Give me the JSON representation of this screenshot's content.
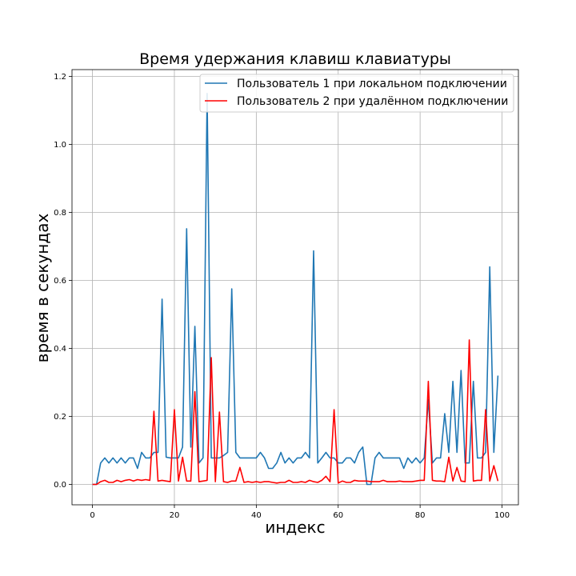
{
  "chart_data": {
    "type": "line",
    "title": "Время удержания клавиш клавиатуры",
    "xlabel": "индекс",
    "ylabel": "время в секундах",
    "xlim": [
      -5,
      104
    ],
    "ylim": [
      -0.06,
      1.22
    ],
    "xticks": [
      0,
      20,
      40,
      60,
      80,
      100
    ],
    "yticks": [
      0.0,
      0.2,
      0.4,
      0.6,
      0.8,
      1.0,
      1.2
    ],
    "xtick_labels": [
      "0",
      "20",
      "40",
      "60",
      "80",
      "100"
    ],
    "ytick_labels": [
      "0.0",
      "0.2",
      "0.4",
      "0.6",
      "0.8",
      "1.0",
      "1.2"
    ],
    "grid": true,
    "legend_position": "top-right",
    "series": [
      {
        "name": "Пользователь 1 при локальном подключении",
        "color": "#1f77b4",
        "x": [
          0,
          1,
          2,
          3,
          4,
          5,
          6,
          7,
          8,
          9,
          10,
          11,
          12,
          13,
          14,
          15,
          16,
          17,
          18,
          19,
          20,
          21,
          22,
          23,
          24,
          25,
          26,
          27,
          28,
          29,
          30,
          31,
          32,
          33,
          34,
          35,
          36,
          37,
          38,
          39,
          40,
          41,
          42,
          43,
          44,
          45,
          46,
          47,
          48,
          49,
          50,
          51,
          52,
          53,
          54,
          55,
          56,
          57,
          58,
          59,
          60,
          61,
          62,
          63,
          64,
          65,
          66,
          67,
          68,
          69,
          70,
          71,
          72,
          73,
          74,
          75,
          76,
          77,
          78,
          79,
          80,
          81,
          82,
          83,
          84,
          85,
          86,
          87,
          88,
          89,
          90,
          91,
          92,
          93,
          94,
          95,
          96,
          97,
          98,
          99
        ],
        "values": [
          0.0,
          0.0,
          0.063,
          0.078,
          0.063,
          0.078,
          0.063,
          0.078,
          0.063,
          0.078,
          0.078,
          0.047,
          0.094,
          0.078,
          0.078,
          0.094,
          0.094,
          0.545,
          0.08,
          0.078,
          0.078,
          0.078,
          0.11,
          0.752,
          0.11,
          0.465,
          0.063,
          0.078,
          1.15,
          0.078,
          0.078,
          0.078,
          0.085,
          0.094,
          0.575,
          0.094,
          0.078,
          0.078,
          0.078,
          0.078,
          0.078,
          0.094,
          0.078,
          0.047,
          0.047,
          0.063,
          0.094,
          0.063,
          0.078,
          0.063,
          0.078,
          0.078,
          0.094,
          0.078,
          0.687,
          0.063,
          0.078,
          0.094,
          0.078,
          0.078,
          0.063,
          0.063,
          0.078,
          0.078,
          0.063,
          0.094,
          0.11,
          0.0,
          0.0,
          0.078,
          0.094,
          0.078,
          0.078,
          0.078,
          0.078,
          0.078,
          0.047,
          0.078,
          0.063,
          0.078,
          0.063,
          0.078,
          0.25,
          0.063,
          0.078,
          0.078,
          0.208,
          0.094,
          0.303,
          0.094,
          0.335,
          0.063,
          0.063,
          0.303,
          0.078,
          0.078,
          0.094,
          0.64,
          0.094,
          0.32
        ]
      },
      {
        "name": "Пользователь 2 при удалённом подключении",
        "color": "#ff0000",
        "x": [
          0,
          1,
          2,
          3,
          4,
          5,
          6,
          7,
          8,
          9,
          10,
          11,
          12,
          13,
          14,
          15,
          16,
          17,
          18,
          19,
          20,
          21,
          22,
          23,
          24,
          25,
          26,
          27,
          28,
          29,
          30,
          31,
          32,
          33,
          34,
          35,
          36,
          37,
          38,
          39,
          40,
          41,
          42,
          43,
          44,
          45,
          46,
          47,
          48,
          49,
          50,
          51,
          52,
          53,
          54,
          55,
          56,
          57,
          58,
          59,
          60,
          61,
          62,
          63,
          64,
          65,
          66,
          67,
          68,
          69,
          70,
          71,
          72,
          73,
          74,
          75,
          76,
          77,
          78,
          79,
          80,
          81,
          82,
          83,
          84,
          85,
          86,
          87,
          88,
          89,
          90,
          91,
          92,
          93,
          94,
          95,
          96,
          97,
          98,
          99
        ],
        "values": [
          0.0,
          0.0,
          0.008,
          0.012,
          0.006,
          0.006,
          0.012,
          0.008,
          0.012,
          0.014,
          0.01,
          0.014,
          0.012,
          0.014,
          0.012,
          0.215,
          0.01,
          0.012,
          0.01,
          0.008,
          0.22,
          0.01,
          0.08,
          0.01,
          0.01,
          0.273,
          0.008,
          0.01,
          0.012,
          0.373,
          0.008,
          0.213,
          0.008,
          0.006,
          0.01,
          0.01,
          0.05,
          0.006,
          0.008,
          0.006,
          0.008,
          0.006,
          0.008,
          0.008,
          0.006,
          0.004,
          0.006,
          0.006,
          0.012,
          0.006,
          0.006,
          0.008,
          0.006,
          0.012,
          0.008,
          0.006,
          0.012,
          0.024,
          0.008,
          0.22,
          0.004,
          0.01,
          0.006,
          0.006,
          0.012,
          0.01,
          0.01,
          0.01,
          0.008,
          0.008,
          0.008,
          0.012,
          0.008,
          0.008,
          0.008,
          0.01,
          0.008,
          0.008,
          0.008,
          0.01,
          0.012,
          0.012,
          0.303,
          0.012,
          0.01,
          0.01,
          0.008,
          0.08,
          0.01,
          0.05,
          0.01,
          0.008,
          0.425,
          0.01,
          0.012,
          0.012,
          0.22,
          0.01,
          0.055,
          0.01
        ]
      }
    ]
  }
}
